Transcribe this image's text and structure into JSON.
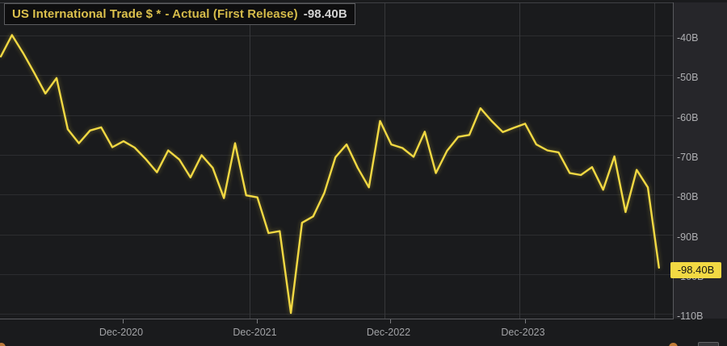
{
  "header": {
    "title": "US International Trade $ *",
    "series": "- Actual (First Release)",
    "value": "-98.40B"
  },
  "chart_data": {
    "type": "line",
    "title": "US International Trade $ * - Actual (First Release)",
    "series_name": "Actual (First Release)",
    "unit": "USD billions",
    "latest_label": "-98.40B",
    "latest_value": -98.4,
    "line_color": "#f2d943",
    "grid": "horizontal + year boundaries",
    "legend_position": "top-left box",
    "ylim": [
      -113,
      -36
    ],
    "x": [
      "Jan-2020",
      "Feb-2020",
      "Mar-2020",
      "Apr-2020",
      "May-2020",
      "Jun-2020",
      "Jul-2020",
      "Aug-2020",
      "Sep-2020",
      "Oct-2020",
      "Nov-2020",
      "Dec-2020",
      "Jan-2021",
      "Feb-2021",
      "Mar-2021",
      "Apr-2021",
      "May-2021",
      "Jun-2021",
      "Jul-2021",
      "Aug-2021",
      "Sep-2021",
      "Oct-2021",
      "Nov-2021",
      "Dec-2021",
      "Jan-2022",
      "Feb-2022",
      "Mar-2022",
      "Apr-2022",
      "May-2022",
      "Jun-2022",
      "Jul-2022",
      "Aug-2022",
      "Sep-2022",
      "Oct-2022",
      "Nov-2022",
      "Dec-2022",
      "Jan-2023",
      "Feb-2023",
      "Mar-2023",
      "Apr-2023",
      "May-2023",
      "Jun-2023",
      "Jul-2023",
      "Aug-2023",
      "Sep-2023",
      "Oct-2023",
      "Nov-2023",
      "Dec-2023",
      "Jan-2024",
      "Feb-2024",
      "Mar-2024",
      "Apr-2024",
      "May-2024",
      "Jun-2024",
      "Jul-2024",
      "Aug-2024",
      "Sep-2024",
      "Oct-2024",
      "Nov-2024",
      "Dec-2024"
    ],
    "values": [
      -45.3,
      -39.9,
      -44.4,
      -49.4,
      -54.6,
      -50.7,
      -63.6,
      -67.1,
      -63.9,
      -63.1,
      -68.1,
      -66.6,
      -68.2,
      -71.1,
      -74.4,
      -68.9,
      -71.2,
      -75.7,
      -70.1,
      -73.3,
      -80.9,
      -67.1,
      -80.2,
      -80.7,
      -89.7,
      -89.2,
      -109.8,
      -87.1,
      -85.5,
      -79.6,
      -70.6,
      -67.4,
      -73.3,
      -78.2,
      -61.5,
      -67.4,
      -68.3,
      -70.5,
      -64.2,
      -74.6,
      -69.0,
      -65.5,
      -65.0,
      -58.3,
      -61.5,
      -64.3,
      -63.2,
      -62.2,
      -67.4,
      -68.9,
      -69.4,
      -74.6,
      -75.1,
      -73.1,
      -78.8,
      -70.4,
      -84.4,
      -73.8,
      -78.2,
      -98.4
    ],
    "x_tick_labels": [
      "Dec-2020",
      "Dec-2021",
      "Dec-2022",
      "Dec-2023"
    ],
    "y_tick_labels": [
      "-40B",
      "-50B",
      "-60B",
      "-70B",
      "-80B",
      "-90B",
      "-100B",
      "-110B"
    ],
    "y_tick_values": [
      -40,
      -50,
      -60,
      -70,
      -80,
      -90,
      -100,
      -110
    ]
  }
}
